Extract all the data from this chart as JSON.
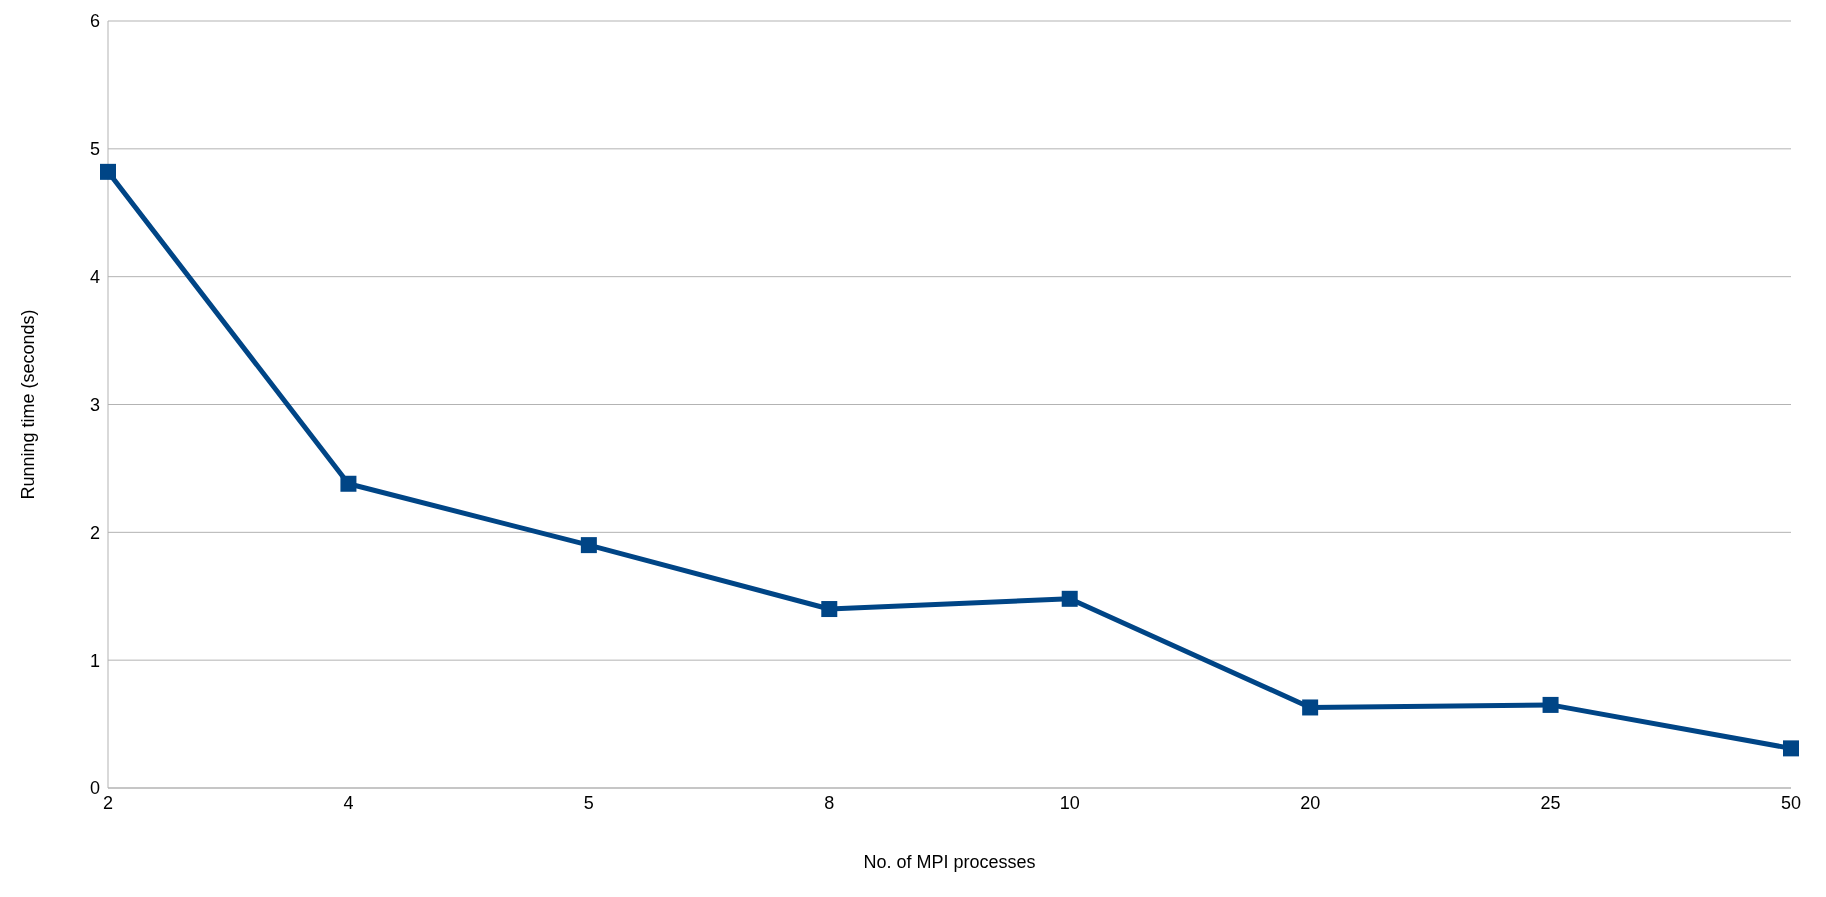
{
  "chart_data": {
    "type": "line",
    "xlabel": "No. of MPI processes",
    "ylabel": "Running time (seconds)",
    "categories": [
      "2",
      "4",
      "5",
      "8",
      "10",
      "20",
      "25",
      "50"
    ],
    "series": [
      {
        "color": "#004586",
        "values": [
          4.82,
          2.38,
          1.9,
          1.4,
          1.48,
          0.63,
          0.65,
          0.31
        ]
      }
    ],
    "ylim": [
      0,
      6
    ],
    "yticks": [
      0,
      1,
      2,
      3,
      4,
      5,
      6
    ],
    "grid": "y",
    "legend": false,
    "marker": "square",
    "line_style": "solid"
  }
}
